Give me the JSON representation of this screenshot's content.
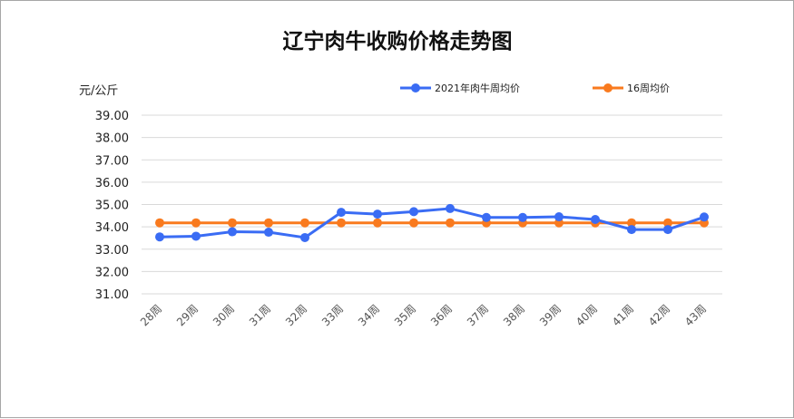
{
  "chart_data": {
    "type": "line",
    "title": "辽宁肉牛收购价格走势图",
    "ylabel": "元/公斤",
    "xlabel": "",
    "categories": [
      "28周",
      "29周",
      "30周",
      "31周",
      "32周",
      "33周",
      "34周",
      "35周",
      "36周",
      "37周",
      "38周",
      "39周",
      "40周",
      "41周",
      "42周",
      "43周"
    ],
    "y_ticks": [
      "31.00",
      "32.00",
      "33.00",
      "34.00",
      "35.00",
      "36.00",
      "37.00",
      "38.00",
      "39.00"
    ],
    "ylim": [
      31,
      39
    ],
    "grid": true,
    "legend_position": "top-right",
    "series": [
      {
        "name": "2021年肉牛周均价",
        "color": "#3a6cf4",
        "values": [
          33.55,
          33.58,
          33.78,
          33.76,
          33.52,
          34.65,
          34.57,
          34.68,
          34.82,
          34.42,
          34.42,
          34.45,
          34.33,
          33.88,
          33.88,
          34.44
        ]
      },
      {
        "name": "16周均价",
        "color": "#f97a1e",
        "values": [
          34.18,
          34.18,
          34.18,
          34.18,
          34.18,
          34.18,
          34.18,
          34.18,
          34.18,
          34.18,
          34.18,
          34.18,
          34.18,
          34.18,
          34.18,
          34.18
        ]
      }
    ]
  }
}
